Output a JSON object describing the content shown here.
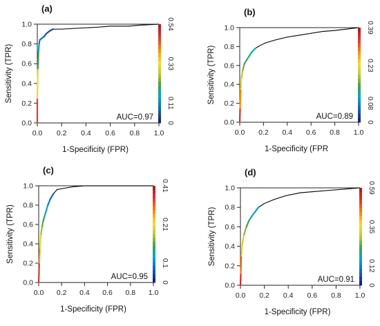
{
  "chart_data": [
    {
      "type": "line",
      "panel_label": "(a)",
      "xlabel": "1-Specificity (FPR)",
      "ylabel": "Sensitivity (TPR)",
      "xlim": [
        0,
        1
      ],
      "ylim": [
        0,
        1
      ],
      "x_ticks": [
        "0.0",
        "0.2",
        "0.4",
        "0.6",
        "0.8",
        "1.0"
      ],
      "y_ticks": [
        "0.0",
        "0.2",
        "0.4",
        "0.6",
        "0.8",
        "1.0"
      ],
      "colorbar_ticks": [
        "0",
        "0.11",
        "0.33",
        "0.54"
      ],
      "annotation": "AUC=0.97",
      "grid": false,
      "series": [
        {
          "points": [
            [
              0,
              0
            ],
            [
              0,
              0.25
            ],
            [
              0.005,
              0.55
            ],
            [
              0.01,
              0.72
            ],
            [
              0.015,
              0.8
            ],
            [
              0.02,
              0.84
            ],
            [
              0.04,
              0.86
            ],
            [
              0.06,
              0.88
            ],
            [
              0.07,
              0.9
            ],
            [
              0.1,
              0.93
            ],
            [
              0.13,
              0.95
            ],
            [
              0.2,
              0.95
            ],
            [
              0.35,
              0.96
            ],
            [
              0.5,
              0.97
            ],
            [
              0.6,
              0.98
            ],
            [
              0.75,
              0.98
            ],
            [
              0.85,
              0.99
            ],
            [
              1,
              1
            ]
          ]
        }
      ]
    },
    {
      "type": "line",
      "panel_label": "(b)",
      "xlabel": "1-Specificity (FPR",
      "ylabel": "Sensitivity (TPR)",
      "xlim": [
        0,
        1
      ],
      "ylim": [
        0,
        1
      ],
      "x_ticks": [
        "0.0",
        "0.2",
        "0.4",
        "0.6",
        "0.8",
        "1.0"
      ],
      "y_ticks": [
        "0.0",
        "0.2",
        "0.4",
        "0.6",
        "0.8",
        "1.0"
      ],
      "colorbar_ticks": [
        "0",
        "0.08",
        "0.23",
        "0.39"
      ],
      "annotation": "AUC=0.89",
      "grid": false,
      "series": [
        {
          "points": [
            [
              0,
              0
            ],
            [
              0.003,
              0.15
            ],
            [
              0.008,
              0.35
            ],
            [
              0.015,
              0.47
            ],
            [
              0.025,
              0.55
            ],
            [
              0.04,
              0.62
            ],
            [
              0.06,
              0.66
            ],
            [
              0.08,
              0.7
            ],
            [
              0.1,
              0.74
            ],
            [
              0.13,
              0.78
            ],
            [
              0.17,
              0.81
            ],
            [
              0.22,
              0.84
            ],
            [
              0.3,
              0.87
            ],
            [
              0.4,
              0.9
            ],
            [
              0.5,
              0.92
            ],
            [
              0.6,
              0.94
            ],
            [
              0.7,
              0.96
            ],
            [
              0.8,
              0.97
            ],
            [
              0.9,
              0.985
            ],
            [
              1,
              1
            ]
          ]
        }
      ]
    },
    {
      "type": "line",
      "panel_label": "(c)",
      "xlabel": "1-Specificity (FPR)",
      "ylabel": "Sensitivity (TPR)",
      "xlim": [
        0,
        1
      ],
      "ylim": [
        0,
        1
      ],
      "x_ticks": [
        "0.0",
        "0.2",
        "0.4",
        "0.6",
        "0.8",
        "1.0"
      ],
      "y_ticks": [
        "0.0",
        "0.2",
        "0.4",
        "0.6",
        "0.8",
        "1.0"
      ],
      "colorbar_ticks": [
        "0",
        "0.1",
        "0.21",
        "0.41"
      ],
      "annotation": "AUC=0.95",
      "grid": false,
      "series": [
        {
          "points": [
            [
              0,
              0
            ],
            [
              0.005,
              0.2
            ],
            [
              0.01,
              0.35
            ],
            [
              0.02,
              0.5
            ],
            [
              0.03,
              0.58
            ],
            [
              0.04,
              0.64
            ],
            [
              0.06,
              0.72
            ],
            [
              0.08,
              0.8
            ],
            [
              0.1,
              0.86
            ],
            [
              0.13,
              0.92
            ],
            [
              0.16,
              0.96
            ],
            [
              0.2,
              0.97
            ],
            [
              0.25,
              0.98
            ],
            [
              0.3,
              0.99
            ],
            [
              0.4,
              1
            ],
            [
              1,
              1
            ]
          ]
        }
      ]
    },
    {
      "type": "line",
      "panel_label": "(d)",
      "xlabel": "1-Specificity (FPR)",
      "ylabel": "Sensitivity (TPR)",
      "xlim": [
        0,
        1
      ],
      "ylim": [
        0,
        1
      ],
      "x_ticks": [
        "0.0",
        "0.2",
        "0.4",
        "0.6",
        "0.8",
        "1.0"
      ],
      "y_ticks": [
        "0.0",
        "0.2",
        "0.4",
        "0.6",
        "0.8",
        "1.0"
      ],
      "colorbar_ticks": [
        "0",
        "0.12",
        "0.35",
        "0.59"
      ],
      "annotation": "AUC=0.91",
      "grid": false,
      "series": [
        {
          "points": [
            [
              0,
              0
            ],
            [
              0.003,
              0.12
            ],
            [
              0.008,
              0.3
            ],
            [
              0.015,
              0.42
            ],
            [
              0.03,
              0.52
            ],
            [
              0.05,
              0.6
            ],
            [
              0.07,
              0.66
            ],
            [
              0.09,
              0.7
            ],
            [
              0.12,
              0.75
            ],
            [
              0.15,
              0.8
            ],
            [
              0.2,
              0.84
            ],
            [
              0.28,
              0.88
            ],
            [
              0.38,
              0.92
            ],
            [
              0.5,
              0.95
            ],
            [
              0.6,
              0.96
            ],
            [
              0.7,
              0.97
            ],
            [
              0.8,
              0.98
            ],
            [
              0.9,
              0.99
            ],
            [
              1,
              1
            ]
          ]
        }
      ]
    }
  ],
  "colormap": [
    "#1a237e",
    "#1565c0",
    "#00acc1",
    "#43a047",
    "#c0ca33",
    "#fdd835",
    "#fb8c00",
    "#e53935",
    "#b71c1c"
  ]
}
